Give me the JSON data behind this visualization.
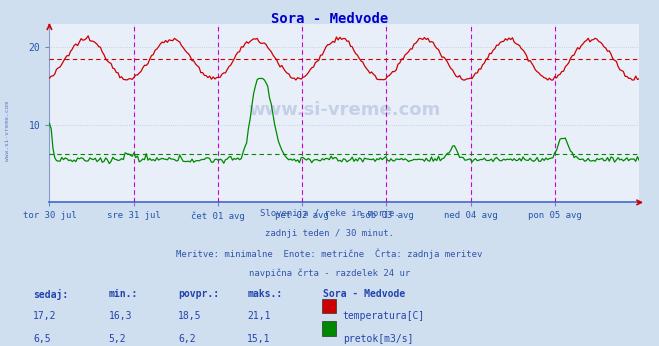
{
  "title": "Sora - Medvode",
  "title_color": "#0000cc",
  "bg_color": "#d0dff0",
  "plot_bg_color": "#e8eff8",
  "grid_color": "#b8c8dc",
  "x_label_color": "#2255aa",
  "y_label_color": "#2255aa",
  "temp_color": "#cc0000",
  "flow_color": "#008800",
  "vline_color": "#cc00cc",
  "x_ticks_labels": [
    "tor 30 jul",
    "sre 31 jul",
    "čet 01 avg",
    "pet 02 avg",
    "sob 03 avg",
    "ned 04 avg",
    "pon 05 avg"
  ],
  "y_ticks": [
    10,
    20
  ],
  "y_min": 0,
  "y_max": 23,
  "temp_avg": 18.5,
  "flow_avg": 6.2,
  "temp_min": 16.3,
  "temp_max": 21.1,
  "temp_current": 17.2,
  "flow_min": 5.2,
  "flow_max": 15.1,
  "flow_current": 6.5,
  "info_line1": "Slovenija / reke in morje.",
  "info_line2": "zadnji teden / 30 minut.",
  "info_line3": "Meritve: minimalne  Enote: metrične  Črta: zadnja meritev",
  "info_line4": "navpična črta - razdelek 24 ur",
  "legend_title": "Sora - Medvode",
  "label_sedaj": "sedaj:",
  "label_min": "min.:",
  "label_povpr": "povpr.:",
  "label_maks": "maks.:",
  "legend_temp": "temperatura[C]",
  "legend_flow": "pretok[m3/s]",
  "watermark": "www.si-vreme.com",
  "sidebar_text": "www.si-vreme.com",
  "n_points": 336
}
